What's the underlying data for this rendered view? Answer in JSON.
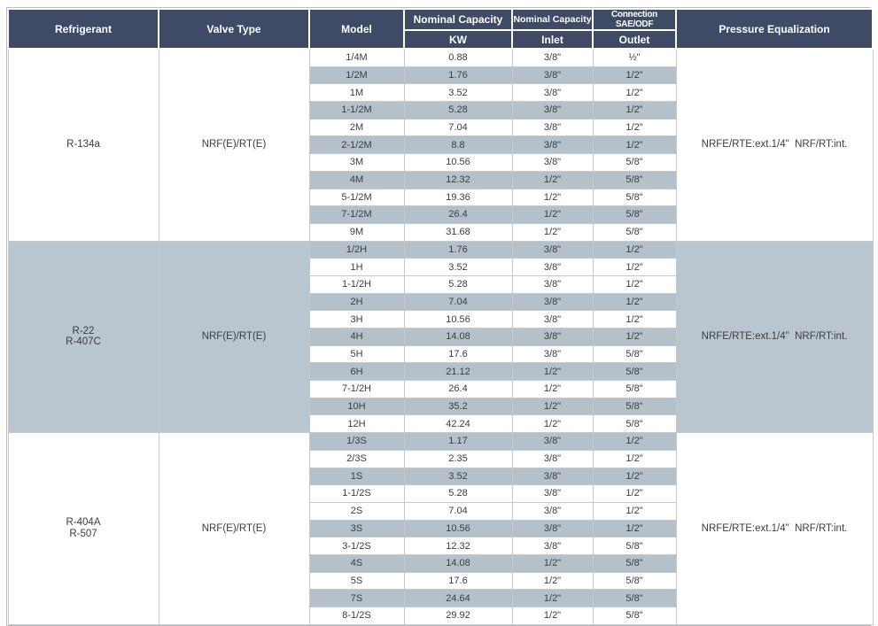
{
  "table": {
    "colors": {
      "header_bg": "#3f4b66",
      "header_text": "#ffffff",
      "row_shaded_bg": "#b4c1cb",
      "group_shaded_bg": "#b9c6d0",
      "row_text": "#3c3c40",
      "border": "#c4c9cd"
    },
    "headers": {
      "refrigerant": "Refrigerant",
      "valve_type": "Valve Type",
      "model": "Model",
      "nominal_capacity_kw": "Nominal Capacity",
      "kw": "KW",
      "nominal_capacity_inlet": "Nominal Capacity",
      "inlet": "Inlet",
      "connection_sae_odf": "Connection SAE/ODF",
      "outlet": "Outlet",
      "pressure_equalization": "Pressure Equalization"
    },
    "groups": [
      {
        "refrigerant_lines": [
          "R-134a"
        ],
        "valve_type": "NRF(E)/RT(E)",
        "pressure_equalization": "NRFE/RTE:ext.1/4\"  NRF/RT:int.",
        "outer_shaded": false,
        "rows": [
          {
            "model": "1/4M",
            "kw": "0.88",
            "inlet": "3/8\"",
            "outlet": "½\"",
            "shaded": false
          },
          {
            "model": "1/2M",
            "kw": "1.76",
            "inlet": "3/8\"",
            "outlet": "1/2\"",
            "shaded": true
          },
          {
            "model": "1M",
            "kw": "3.52",
            "inlet": "3/8\"",
            "outlet": "1/2\"",
            "shaded": false
          },
          {
            "model": "1-1/2M",
            "kw": "5.28",
            "inlet": "3/8\"",
            "outlet": "1/2\"",
            "shaded": true
          },
          {
            "model": "2M",
            "kw": "7.04",
            "inlet": "3/8\"",
            "outlet": "1/2\"",
            "shaded": false
          },
          {
            "model": "2-1/2M",
            "kw": "8.8",
            "inlet": "3/8\"",
            "outlet": "1/2\"",
            "shaded": true
          },
          {
            "model": "3M",
            "kw": "10.56",
            "inlet": "3/8\"",
            "outlet": "5/8\"",
            "shaded": false
          },
          {
            "model": "4M",
            "kw": "12.32",
            "inlet": "1/2\"",
            "outlet": "5/8\"",
            "shaded": true
          },
          {
            "model": "5-1/2M",
            "kw": "19.36",
            "inlet": "1/2\"",
            "outlet": "5/8\"",
            "shaded": false
          },
          {
            "model": "7-1/2M",
            "kw": "26.4",
            "inlet": "1/2\"",
            "outlet": "5/8\"",
            "shaded": true
          },
          {
            "model": "9M",
            "kw": "31.68",
            "inlet": "1/2\"",
            "outlet": "5/8\"",
            "shaded": false
          }
        ]
      },
      {
        "refrigerant_lines": [
          "R-22",
          "R-407C"
        ],
        "valve_type": "NRF(E)/RT(E)",
        "pressure_equalization": "NRFE/RTE:ext.1/4\"  NRF/RT:int.",
        "outer_shaded": true,
        "rows": [
          {
            "model": "1/2H",
            "kw": "1.76",
            "inlet": "3/8\"",
            "outlet": "1/2\"",
            "shaded": true
          },
          {
            "model": "1H",
            "kw": "3.52",
            "inlet": "3/8\"",
            "outlet": "1/2\"",
            "shaded": false
          },
          {
            "model": "1-1/2H",
            "kw": "5.28",
            "inlet": "3/8\"",
            "outlet": "1/2\"",
            "shaded": false
          },
          {
            "model": "2H",
            "kw": "7.04",
            "inlet": "3/8\"",
            "outlet": "1/2\"",
            "shaded": true
          },
          {
            "model": "3H",
            "kw": "10.56",
            "inlet": "3/8\"",
            "outlet": "1/2\"",
            "shaded": false
          },
          {
            "model": "4H",
            "kw": "14.08",
            "inlet": "3/8\"",
            "outlet": "1/2\"",
            "shaded": true
          },
          {
            "model": "5H",
            "kw": "17.6",
            "inlet": "3/8\"",
            "outlet": "5/8\"",
            "shaded": false
          },
          {
            "model": "6H",
            "kw": "21.12",
            "inlet": "1/2\"",
            "outlet": "5/8\"",
            "shaded": true
          },
          {
            "model": "7-1/2H",
            "kw": "26.4",
            "inlet": "1/2\"",
            "outlet": "5/8\"",
            "shaded": false
          },
          {
            "model": "10H",
            "kw": "35.2",
            "inlet": "1/2\"",
            "outlet": "5/8\"",
            "shaded": true
          },
          {
            "model": "12H",
            "kw": "42.24",
            "inlet": "1/2\"",
            "outlet": "5/8\"",
            "shaded": false
          }
        ]
      },
      {
        "refrigerant_lines": [
          "R-404A",
          "R-507"
        ],
        "valve_type": "NRF(E)/RT(E)",
        "pressure_equalization": "NRFE/RTE:ext.1/4\"  NRF/RT:int.",
        "outer_shaded": false,
        "rows": [
          {
            "model": "1/3S",
            "kw": "1.17",
            "inlet": "3/8\"",
            "outlet": "1/2\"",
            "shaded": true
          },
          {
            "model": "2/3S",
            "kw": "2.35",
            "inlet": "3/8\"",
            "outlet": "1/2\"",
            "shaded": false
          },
          {
            "model": "1S",
            "kw": "3.52",
            "inlet": "3/8\"",
            "outlet": "1/2\"",
            "shaded": true
          },
          {
            "model": "1-1/2S",
            "kw": "5.28",
            "inlet": "3/8\"",
            "outlet": "1/2\"",
            "shaded": false
          },
          {
            "model": "2S",
            "kw": "7.04",
            "inlet": "3/8\"",
            "outlet": "1/2\"",
            "shaded": false
          },
          {
            "model": "3S",
            "kw": "10.56",
            "inlet": "3/8\"",
            "outlet": "1/2\"",
            "shaded": true
          },
          {
            "model": "3-1/2S",
            "kw": "12.32",
            "inlet": "3/8\"",
            "outlet": "5/8\"",
            "shaded": false
          },
          {
            "model": "4S",
            "kw": "14.08",
            "inlet": "1/2\"",
            "outlet": "5/8\"",
            "shaded": true
          },
          {
            "model": "5S",
            "kw": "17.6",
            "inlet": "1/2\"",
            "outlet": "5/8\"",
            "shaded": false
          },
          {
            "model": "7S",
            "kw": "24.64",
            "inlet": "1/2\"",
            "outlet": "5/8\"",
            "shaded": true
          },
          {
            "model": "8-1/2S",
            "kw": "29.92",
            "inlet": "1/2\"",
            "outlet": "5/8\"",
            "shaded": false
          }
        ]
      }
    ]
  }
}
